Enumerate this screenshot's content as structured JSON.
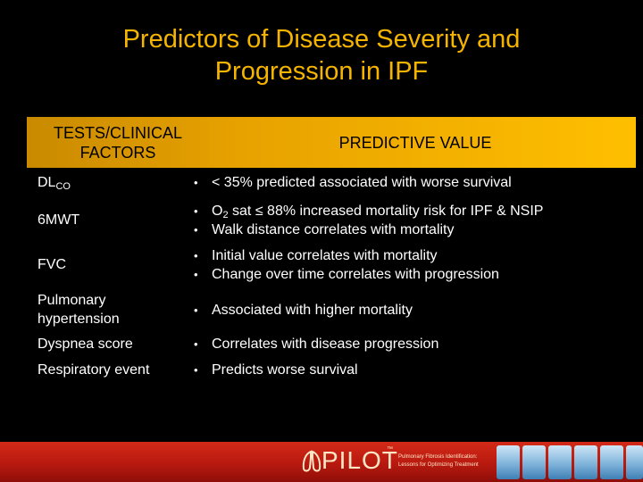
{
  "slide": {
    "title_line1": "Predictors of Disease Severity and",
    "title_line2": "Progression in IPF"
  },
  "table": {
    "header_col1_line1": "TESTS/CLINICAL",
    "header_col1_line2": "FACTORS",
    "header_col2": "PREDICTIVE VALUE",
    "rows": [
      {
        "factor": "DL",
        "factor_sub": "CO",
        "values": [
          "< 35% predicted associated with worse survival"
        ]
      },
      {
        "factor": "6MWT",
        "values": [
          "O",
          "2",
          " sat ≤ 88% increased mortality risk for IPF & NSIP",
          "Walk distance correlates with mortality"
        ]
      },
      {
        "factor": "FVC",
        "values": [
          "Initial value correlates with mortality",
          "Change over time correlates with progression"
        ]
      },
      {
        "factor_line1": "Pulmonary",
        "factor_line2": "hypertension",
        "values": [
          "Associated with higher mortality"
        ]
      },
      {
        "factor": "Dyspnea score",
        "values": [
          "Correlates with disease progression"
        ]
      },
      {
        "factor": "Respiratory event",
        "values": [
          "Predicts worse survival"
        ]
      }
    ]
  },
  "footer": {
    "logo_text": "PILOT",
    "logo_tm": "™",
    "tagline_line1": "Pulmonary Fibrosis Identification:",
    "tagline_line2": "Lessons for Optimizing Treatment"
  },
  "colors": {
    "title": "#f5b400",
    "header_band": "#ffbf00",
    "footer_band": "#c0211a",
    "background": "#000000"
  }
}
